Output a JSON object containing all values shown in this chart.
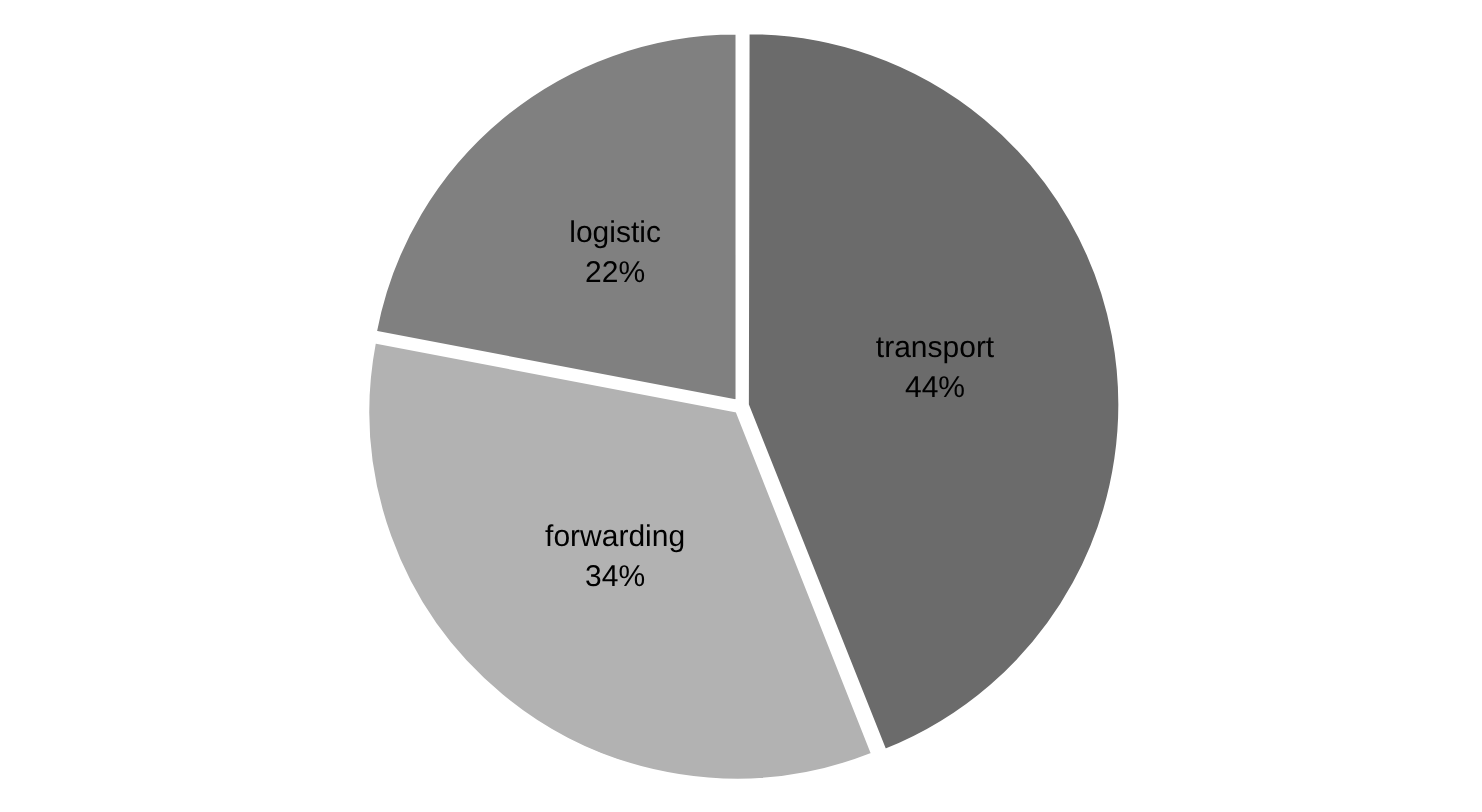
{
  "chart_data": {
    "type": "pie",
    "categories": [
      "transport",
      "forwarding",
      "logistic"
    ],
    "values": [
      44,
      34,
      22
    ],
    "colors": [
      "#6b6b6b",
      "#b2b2b2",
      "#808080"
    ],
    "value_labels": [
      "44%",
      "34%",
      "22%"
    ]
  }
}
